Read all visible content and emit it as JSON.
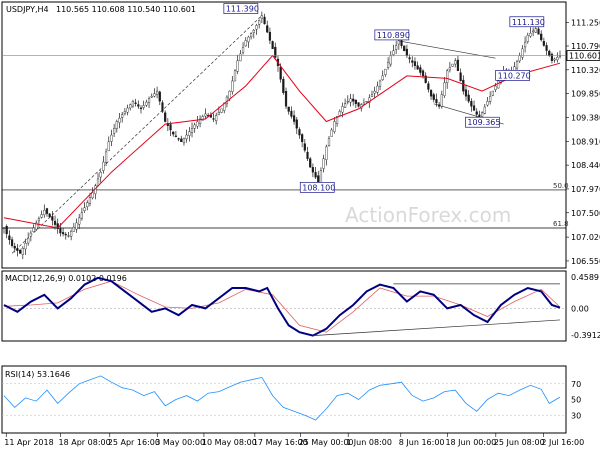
{
  "chart_data": {
    "type": "candlestick",
    "symbol": "USDJPY,H4",
    "quote": "110.565 110.608 110.540 110.601",
    "current_price": "110.601",
    "watermark": "ActionForex.com",
    "price_axis": {
      "ticks": [
        "111.250",
        "110.790",
        "110.320",
        "109.850",
        "109.380",
        "108.910",
        "108.440",
        "107.970",
        "107.500",
        "107.020",
        "106.550"
      ],
      "range": [
        106.45,
        111.5
      ]
    },
    "x_axis": {
      "ticks": [
        "11 Apr 2018",
        "18 Apr 08:00",
        "25 Apr 16:00",
        "3 May 00:00",
        "10 May 08:00",
        "17 May 16:00",
        "25 May 00:00",
        "1 Jun 08:00",
        "8 Jun 16:00",
        "18 Jun 00:00",
        "25 Jun 08:00",
        "2 Jul 16:00"
      ]
    },
    "price_path": [
      [
        0,
        107.2
      ],
      [
        3,
        106.85
      ],
      [
        6,
        106.7
      ],
      [
        9,
        107.0
      ],
      [
        12,
        107.3
      ],
      [
        15,
        107.55
      ],
      [
        18,
        107.35
      ],
      [
        21,
        107.1
      ],
      [
        24,
        107.05
      ],
      [
        27,
        107.3
      ],
      [
        30,
        107.6
      ],
      [
        33,
        107.9
      ],
      [
        36,
        108.3
      ],
      [
        39,
        108.9
      ],
      [
        42,
        109.3
      ],
      [
        45,
        109.5
      ],
      [
        48,
        109.7
      ],
      [
        51,
        109.55
      ],
      [
        54,
        109.75
      ],
      [
        57,
        109.9
      ],
      [
        60,
        109.3
      ],
      [
        63,
        109.05
      ],
      [
        66,
        108.9
      ],
      [
        69,
        109.1
      ],
      [
        72,
        109.3
      ],
      [
        75,
        109.45
      ],
      [
        78,
        109.35
      ],
      [
        81,
        109.55
      ],
      [
        84,
        109.9
      ],
      [
        87,
        110.5
      ],
      [
        90,
        110.9
      ],
      [
        93,
        111.1
      ],
      [
        96,
        111.39
      ],
      [
        99,
        110.9
      ],
      [
        102,
        110.4
      ],
      [
        105,
        109.6
      ],
      [
        108,
        109.3
      ],
      [
        111,
        108.9
      ],
      [
        114,
        108.4
      ],
      [
        117,
        108.1
      ],
      [
        120,
        108.8
      ],
      [
        123,
        109.3
      ],
      [
        126,
        109.6
      ],
      [
        129,
        109.75
      ],
      [
        132,
        109.6
      ],
      [
        135,
        109.7
      ],
      [
        138,
        109.9
      ],
      [
        141,
        110.2
      ],
      [
        144,
        110.6
      ],
      [
        147,
        110.89
      ],
      [
        150,
        110.6
      ],
      [
        153,
        110.4
      ],
      [
        156,
        110.2
      ],
      [
        159,
        109.8
      ],
      [
        162,
        109.6
      ],
      [
        165,
        110.3
      ],
      [
        168,
        110.5
      ],
      [
        171,
        109.9
      ],
      [
        174,
        109.6
      ],
      [
        177,
        109.36
      ],
      [
        180,
        109.7
      ],
      [
        183,
        110.0
      ],
      [
        186,
        110.3
      ],
      [
        189,
        110.27
      ],
      [
        192,
        110.6
      ],
      [
        195,
        111.0
      ],
      [
        198,
        111.13
      ],
      [
        201,
        110.8
      ],
      [
        204,
        110.5
      ],
      [
        207,
        110.601
      ]
    ],
    "moving_average": [
      [
        0,
        107.4
      ],
      [
        20,
        107.2
      ],
      [
        40,
        108.3
      ],
      [
        60,
        109.25
      ],
      [
        75,
        109.35
      ],
      [
        90,
        110.0
      ],
      [
        100,
        110.6
      ],
      [
        110,
        109.9
      ],
      [
        120,
        109.3
      ],
      [
        132,
        109.55
      ],
      [
        150,
        110.2
      ],
      [
        165,
        110.15
      ],
      [
        178,
        109.9
      ],
      [
        190,
        110.2
      ],
      [
        207,
        110.45
      ]
    ],
    "annotations": [
      {
        "label": "111.390",
        "x": 96,
        "y": 111.39
      },
      {
        "label": "108.100",
        "x": 117,
        "y": 108.1
      },
      {
        "label": "110.890",
        "x": 147,
        "y": 110.89
      },
      {
        "label": "109.365",
        "x": 177,
        "y": 109.365
      },
      {
        "label": "110.270",
        "x": 189,
        "y": 110.27
      },
      {
        "label": "111.130",
        "x": 198,
        "y": 111.13
      }
    ],
    "fib_levels": [
      {
        "label": "50.0",
        "y": 107.95
      },
      {
        "label": "61.8",
        "y": 107.2
      }
    ],
    "trendlines": [
      {
        "from": [
          3,
          106.7
        ],
        "to": [
          96,
          111.39
        ],
        "style": "dashed"
      },
      {
        "from": [
          147,
          110.89
        ],
        "to": [
          183,
          110.55
        ],
        "style": "solid"
      },
      {
        "from": [
          160,
          109.65
        ],
        "to": [
          186,
          109.25
        ],
        "style": "solid"
      }
    ],
    "macd": {
      "title": "MACD(12,26,9) 0.0102 0.0196",
      "ticks": [
        "0.4589",
        "0.00",
        "-0.3912"
      ],
      "range": [
        -0.45,
        0.52
      ],
      "main": [
        [
          0,
          0.05
        ],
        [
          5,
          -0.05
        ],
        [
          10,
          0.1
        ],
        [
          15,
          0.2
        ],
        [
          20,
          0.0
        ],
        [
          25,
          0.15
        ],
        [
          30,
          0.35
        ],
        [
          35,
          0.45
        ],
        [
          40,
          0.4
        ],
        [
          45,
          0.25
        ],
        [
          50,
          0.1
        ],
        [
          55,
          -0.05
        ],
        [
          60,
          0.0
        ],
        [
          65,
          -0.1
        ],
        [
          70,
          0.05
        ],
        [
          75,
          0.0
        ],
        [
          80,
          0.15
        ],
        [
          85,
          0.3
        ],
        [
          90,
          0.3
        ],
        [
          95,
          0.25
        ],
        [
          98,
          0.3
        ],
        [
          102,
          0.0
        ],
        [
          106,
          -0.25
        ],
        [
          110,
          -0.35
        ],
        [
          115,
          -0.4
        ],
        [
          120,
          -0.3
        ],
        [
          125,
          -0.1
        ],
        [
          130,
          0.05
        ],
        [
          135,
          0.25
        ],
        [
          140,
          0.35
        ],
        [
          145,
          0.3
        ],
        [
          150,
          0.1
        ],
        [
          155,
          0.25
        ],
        [
          160,
          0.2
        ],
        [
          165,
          0.0
        ],
        [
          170,
          0.05
        ],
        [
          175,
          -0.1
        ],
        [
          180,
          -0.2
        ],
        [
          185,
          0.05
        ],
        [
          190,
          0.2
        ],
        [
          195,
          0.3
        ],
        [
          200,
          0.25
        ],
        [
          204,
          0.05
        ],
        [
          207,
          0.01
        ]
      ],
      "signal": [
        [
          0,
          0.03
        ],
        [
          10,
          0.05
        ],
        [
          20,
          0.08
        ],
        [
          30,
          0.28
        ],
        [
          40,
          0.4
        ],
        [
          50,
          0.2
        ],
        [
          60,
          0.02
        ],
        [
          70,
          0.0
        ],
        [
          80,
          0.08
        ],
        [
          90,
          0.28
        ],
        [
          100,
          0.2
        ],
        [
          110,
          -0.25
        ],
        [
          120,
          -0.35
        ],
        [
          130,
          -0.05
        ],
        [
          140,
          0.3
        ],
        [
          150,
          0.18
        ],
        [
          160,
          0.18
        ],
        [
          170,
          0.05
        ],
        [
          180,
          -0.12
        ],
        [
          190,
          0.1
        ],
        [
          200,
          0.28
        ],
        [
          207,
          0.02
        ]
      ],
      "trendlines": [
        {
          "from": [
            145,
            0.36
          ],
          "to": [
            207,
            0.36
          ]
        },
        {
          "from": [
            115,
            -0.4
          ],
          "to": [
            207,
            -0.17
          ]
        }
      ]
    },
    "rsi": {
      "title": "RSI(14) 53.1646",
      "ticks": [
        "70",
        "50",
        "30"
      ],
      "range": [
        10,
        90
      ],
      "values": [
        [
          0,
          55
        ],
        [
          4,
          40
        ],
        [
          8,
          52
        ],
        [
          12,
          48
        ],
        [
          16,
          62
        ],
        [
          20,
          45
        ],
        [
          24,
          58
        ],
        [
          28,
          70
        ],
        [
          32,
          75
        ],
        [
          36,
          80
        ],
        [
          40,
          72
        ],
        [
          44,
          65
        ],
        [
          48,
          62
        ],
        [
          52,
          55
        ],
        [
          56,
          60
        ],
        [
          60,
          42
        ],
        [
          64,
          50
        ],
        [
          68,
          55
        ],
        [
          72,
          48
        ],
        [
          76,
          58
        ],
        [
          80,
          60
        ],
        [
          84,
          66
        ],
        [
          88,
          72
        ],
        [
          92,
          75
        ],
        [
          96,
          78
        ],
        [
          100,
          55
        ],
        [
          104,
          40
        ],
        [
          108,
          35
        ],
        [
          112,
          30
        ],
        [
          116,
          24
        ],
        [
          120,
          38
        ],
        [
          124,
          55
        ],
        [
          128,
          58
        ],
        [
          132,
          50
        ],
        [
          136,
          62
        ],
        [
          140,
          68
        ],
        [
          144,
          70
        ],
        [
          148,
          72
        ],
        [
          152,
          55
        ],
        [
          156,
          48
        ],
        [
          160,
          52
        ],
        [
          164,
          60
        ],
        [
          168,
          62
        ],
        [
          172,
          45
        ],
        [
          176,
          35
        ],
        [
          180,
          50
        ],
        [
          184,
          58
        ],
        [
          188,
          55
        ],
        [
          192,
          62
        ],
        [
          196,
          68
        ],
        [
          200,
          63
        ],
        [
          203,
          45
        ],
        [
          207,
          53
        ]
      ]
    },
    "colors": {
      "candle": "#1a1a1a",
      "moving_average": "#e6001a",
      "macd_main": "#000080",
      "macd_signal": "#e06060",
      "rsi": "#1e90ff",
      "annotation": "#1a1a8c",
      "fib": "#000000"
    }
  }
}
